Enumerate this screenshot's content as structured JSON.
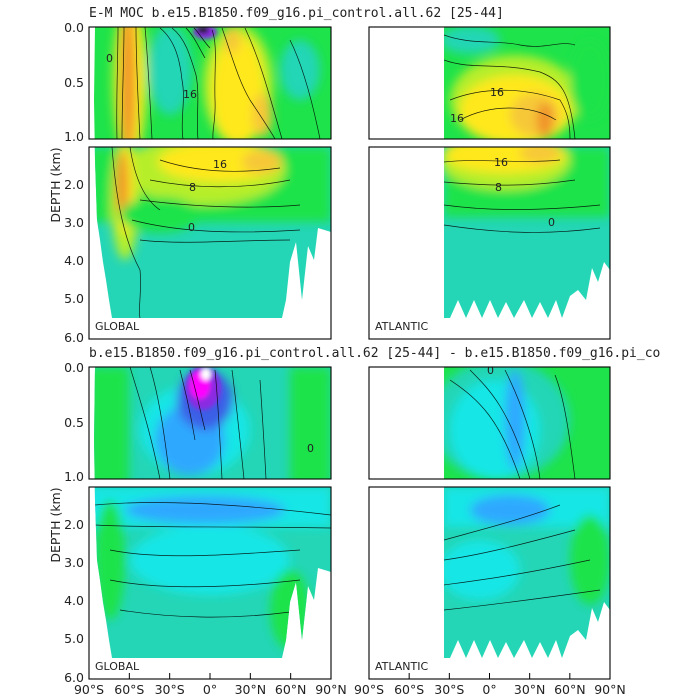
{
  "figure": {
    "title_top": "E-M MOC   b.e15.B1850.f09_g16.pi_control.all.62 [25-44]",
    "title_bottom": "b.e15.B1850.f09_g16.pi_control.all.62 [25-44] - b.e15.B1850.f09_g16.pi_co",
    "colors": {
      "magenta": "#ff00ff",
      "purple": "#8a2be2",
      "blue": "#3a5fe6",
      "ltblue": "#2ea8ff",
      "cyan": "#19e6e6",
      "teal": "#24d6b6",
      "green": "#1ee34a",
      "yellowgreen": "#b6ee2a",
      "yellow": "#ffe81e",
      "gold": "#f6c838",
      "orange": "#f0902a"
    }
  },
  "chart_data": [
    {
      "type": "heatmap",
      "title": "E-M MOC   b.e15.B1850.f09_g16.pi_control.all.62 [25-44]",
      "panel_label": "GLOBAL",
      "ylabel": "DEPTH (km)",
      "yticks_upper": [
        "0.0",
        "0.5",
        "1.0"
      ],
      "yticks_lower": [
        "2.0",
        "3.0",
        "4.0",
        "5.0",
        "6.0"
      ],
      "ylim": [
        6.0,
        0.0
      ],
      "xlim": [
        -90,
        90
      ],
      "contour_labels": [
        "16",
        "8",
        "0"
      ],
      "cells": [
        {
          "lat": -60,
          "depth": 0.5,
          "level": "orange"
        },
        {
          "lat": -60,
          "depth": 2.5,
          "level": "orange"
        },
        {
          "lat": -5,
          "depth": 0.05,
          "level": "purple"
        },
        {
          "lat": 5,
          "depth": 0.5,
          "level": "yellow"
        },
        {
          "lat": 25,
          "depth": 0.8,
          "level": "gold"
        },
        {
          "lat": 20,
          "depth": 1.5,
          "level": "gold"
        },
        {
          "lat": 10,
          "depth": 2.5,
          "level": "yellowgreen"
        },
        {
          "lat": 0,
          "depth": 4.5,
          "level": "teal"
        }
      ]
    },
    {
      "type": "heatmap",
      "panel_label": "ATLANTIC",
      "ylim": [
        6.0,
        0.0
      ],
      "xlim": [
        -90,
        90
      ],
      "contour_labels": [
        "16",
        "16",
        "8",
        "0"
      ],
      "cells": [
        {
          "lat": 10,
          "depth": 0.5,
          "level": "yellow"
        },
        {
          "lat": 40,
          "depth": 0.8,
          "level": "gold"
        },
        {
          "lat": 10,
          "depth": 1.6,
          "level": "gold"
        },
        {
          "lat": 10,
          "depth": 2.5,
          "level": "yellowgreen"
        },
        {
          "lat": 10,
          "depth": 4.5,
          "level": "teal"
        }
      ]
    },
    {
      "type": "heatmap",
      "title": "b.e15.B1850.f09_g16.pi_control.all.62 [25-44] - b.e15.B1850.f09_g16.pi_co",
      "panel_label": "GLOBAL",
      "ylabel": "DEPTH (km)",
      "yticks_upper": [
        "0.0",
        "0.5",
        "1.0"
      ],
      "yticks_lower": [
        "2.0",
        "3.0",
        "4.0",
        "5.0",
        "6.0"
      ],
      "xticks": [
        "90°S",
        "60°S",
        "30°S",
        "0°",
        "30°N",
        "60°N",
        "90°N"
      ],
      "ylim": [
        6.0,
        0.0
      ],
      "xlim": [
        -90,
        90
      ],
      "contour_labels": [
        "0"
      ],
      "cells": [
        {
          "lat": -5,
          "depth": 0.2,
          "level": "magenta"
        },
        {
          "lat": -10,
          "depth": 0.5,
          "level": "blue"
        },
        {
          "lat": -20,
          "depth": 1.0,
          "level": "ltblue"
        },
        {
          "lat": 0,
          "depth": 1.6,
          "level": "ltblue"
        },
        {
          "lat": 0,
          "depth": 3.0,
          "level": "cyan"
        },
        {
          "lat": 0,
          "depth": 5.0,
          "level": "teal"
        }
      ]
    },
    {
      "type": "heatmap",
      "panel_label": "ATLANTIC",
      "xticks": [
        "90°S",
        "60°S",
        "30°S",
        "0°",
        "30°N",
        "60°N",
        "90°N"
      ],
      "ylim": [
        6.0,
        0.0
      ],
      "xlim": [
        -90,
        90
      ],
      "contour_labels": [
        "0"
      ],
      "cells": [
        {
          "lat": 0,
          "depth": 0.5,
          "level": "cyan"
        },
        {
          "lat": 0,
          "depth": 1.5,
          "level": "ltblue"
        },
        {
          "lat": 0,
          "depth": 3.0,
          "level": "cyan"
        },
        {
          "lat": 0,
          "depth": 5.0,
          "level": "teal"
        }
      ]
    }
  ]
}
